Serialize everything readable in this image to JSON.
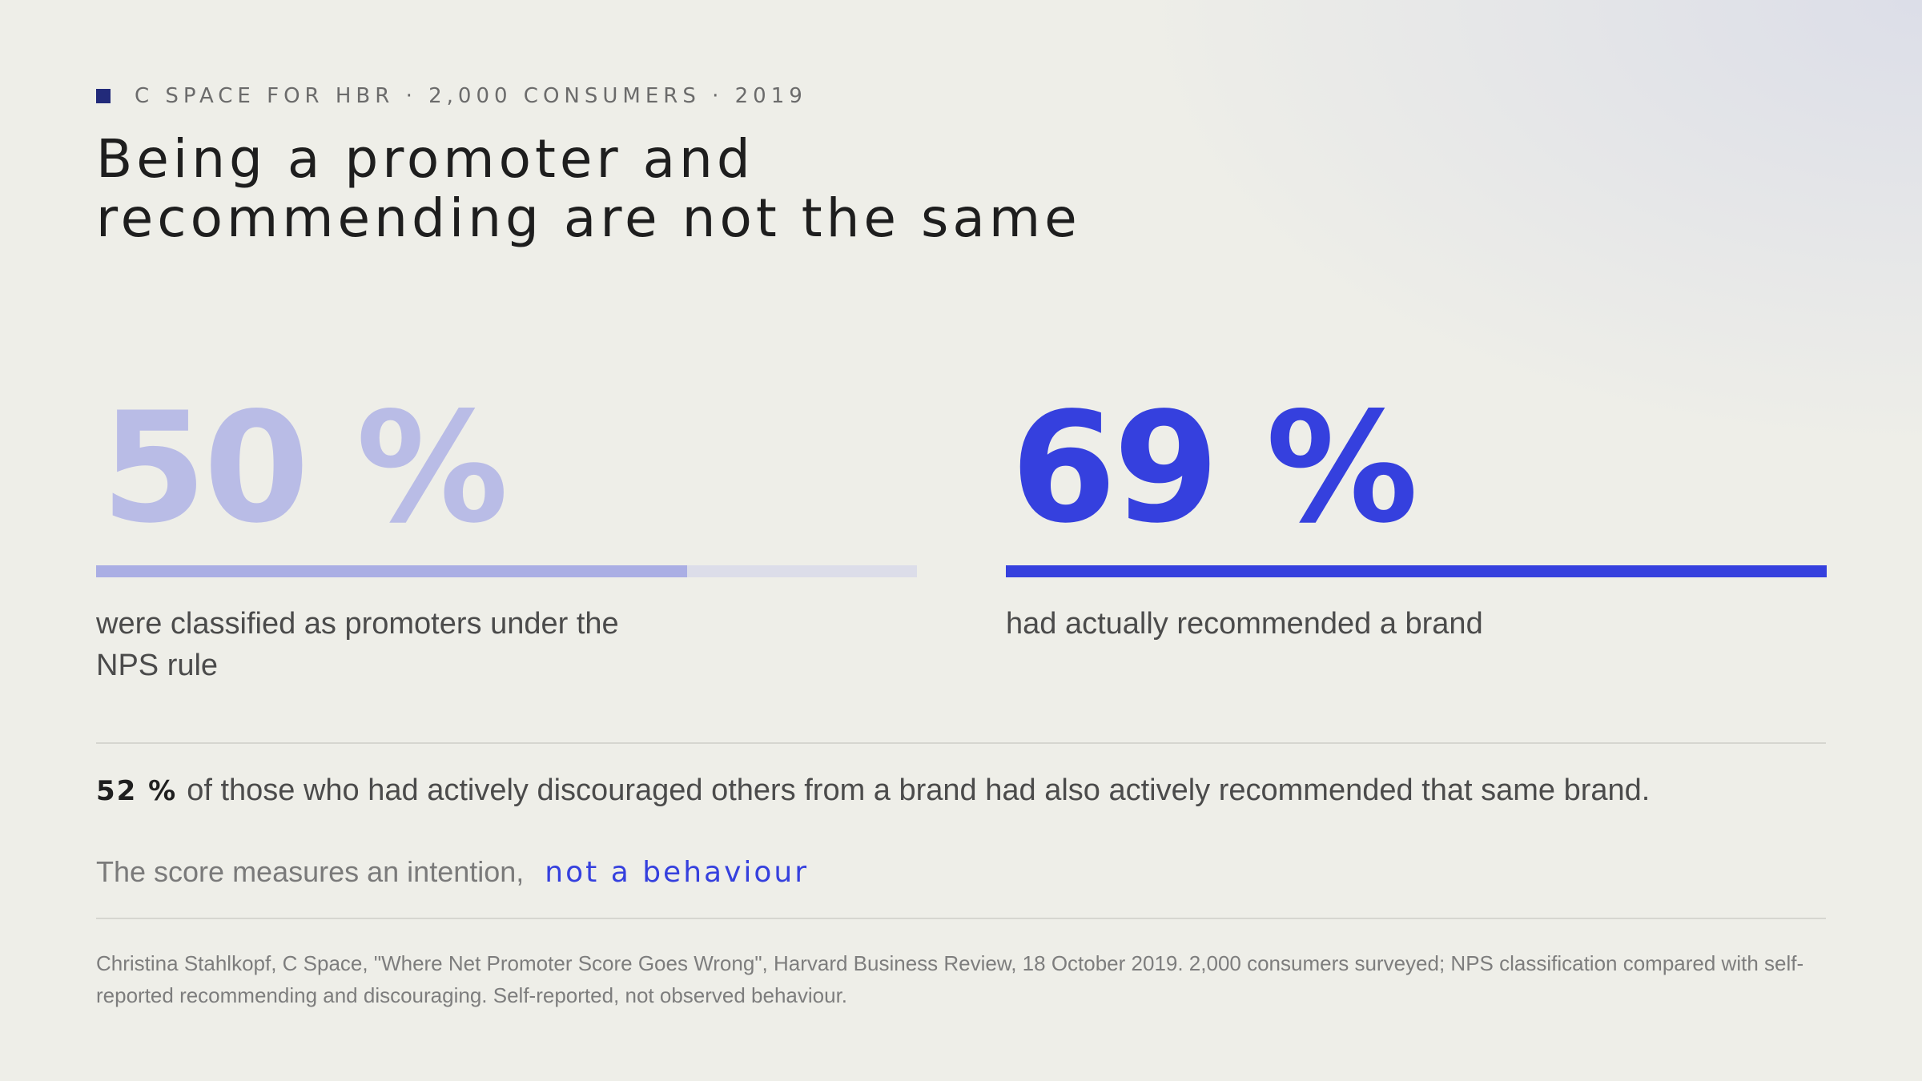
{
  "eyebrow": {
    "text": "C SPACE FOR HBR · 2,000 CONSUMERS · 2019",
    "accent_color": "#222a7a"
  },
  "title": "Being a promoter and recommending are not the same",
  "stats": [
    {
      "value": "50 %",
      "percent": 50,
      "bar_fill_fraction": 0.72,
      "caption": "were classified as promoters under the NPS rule",
      "color": "#b9bce6",
      "bar_color": "#aaaee4"
    },
    {
      "value": "69 %",
      "percent": 69,
      "bar_fill_fraction": 1.0,
      "caption": "had actually recommended a brand",
      "color": "#3540de",
      "bar_color": "#3540de"
    }
  ],
  "finding": {
    "figure": "52 %",
    "text": "of those who had actively discouraged others from a brand had also actively recommended that same brand."
  },
  "takeaway": {
    "lead": "The score measures an intention,",
    "emphasis": "not a behaviour",
    "emphasis_color": "#3540de"
  },
  "source": "Christina Stahlkopf, C Space, \"Where Net Promoter Score Goes Wrong\", Harvard Business Review, 18 October 2019. 2,000 consumers surveyed; NPS classification compared with self-reported recommending and discouraging. Self-reported, not observed behaviour."
}
